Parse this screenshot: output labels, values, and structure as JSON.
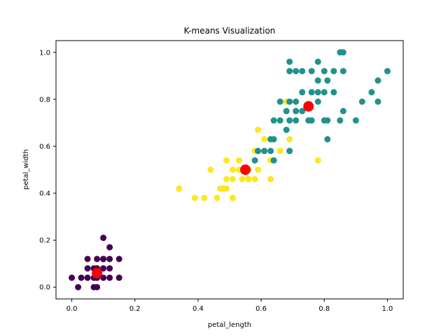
{
  "chart_data": {
    "type": "scatter",
    "title": "K-means Visualization",
    "xlabel": "petal_length",
    "ylabel": "petal_width",
    "xlim": [
      -0.05,
      1.05
    ],
    "ylim": [
      -0.05,
      1.05
    ],
    "xticks": [
      0.0,
      0.2,
      0.4,
      0.6,
      0.8,
      1.0
    ],
    "yticks": [
      0.0,
      0.2,
      0.4,
      0.6,
      0.8,
      1.0
    ],
    "xtick_labels": [
      "0.0",
      "0.2",
      "0.4",
      "0.6",
      "0.8",
      "1.0"
    ],
    "ytick_labels": [
      "0.0",
      "0.2",
      "0.4",
      "0.6",
      "0.8",
      "1.0"
    ],
    "grid": false,
    "series": [
      {
        "color": "#440154",
        "x": [
          0.0,
          0.02,
          0.03,
          0.05,
          0.05,
          0.05,
          0.07,
          0.07,
          0.07,
          0.08,
          0.08,
          0.08,
          0.08,
          0.1,
          0.1,
          0.1,
          0.1,
          0.12,
          0.12,
          0.12,
          0.15,
          0.15,
          0.1,
          0.12
        ],
        "y": [
          0.04,
          0.0,
          0.04,
          0.04,
          0.08,
          0.12,
          0.0,
          0.04,
          0.08,
          0.04,
          0.08,
          0.12,
          0.0,
          0.04,
          0.08,
          0.12,
          0.21,
          0.04,
          0.08,
          0.12,
          0.04,
          0.12,
          0.12,
          0.17
        ]
      },
      {
        "color": "#fde725",
        "x": [
          0.34,
          0.39,
          0.42,
          0.44,
          0.46,
          0.47,
          0.48,
          0.49,
          0.49,
          0.51,
          0.51,
          0.51,
          0.53,
          0.53,
          0.54,
          0.54,
          0.56,
          0.56,
          0.58,
          0.58,
          0.59,
          0.59,
          0.59,
          0.61,
          0.61,
          0.63,
          0.63,
          0.66,
          0.66,
          0.68,
          0.69,
          0.69,
          0.71,
          0.78,
          0.49,
          0.51,
          0.56
        ],
        "y": [
          0.42,
          0.38,
          0.38,
          0.5,
          0.38,
          0.42,
          0.42,
          0.46,
          0.54,
          0.38,
          0.46,
          0.5,
          0.5,
          0.54,
          0.46,
          0.5,
          0.46,
          0.5,
          0.46,
          0.58,
          0.5,
          0.58,
          0.67,
          0.58,
          0.63,
          0.46,
          0.54,
          0.58,
          0.58,
          0.79,
          0.58,
          0.63,
          0.75,
          0.54,
          0.42,
          0.38,
          0.46
        ]
      },
      {
        "color": "#21918c",
        "x": [
          0.58,
          0.59,
          0.61,
          0.63,
          0.63,
          0.64,
          0.64,
          0.66,
          0.66,
          0.68,
          0.68,
          0.69,
          0.69,
          0.69,
          0.69,
          0.71,
          0.71,
          0.71,
          0.71,
          0.73,
          0.73,
          0.73,
          0.75,
          0.76,
          0.76,
          0.76,
          0.78,
          0.78,
          0.78,
          0.78,
          0.8,
          0.8,
          0.8,
          0.81,
          0.81,
          0.83,
          0.83,
          0.85,
          0.85,
          0.86,
          0.86,
          0.86,
          0.9,
          0.92,
          0.95,
          0.97,
          0.97,
          1.0,
          0.81,
          0.64,
          0.69
        ],
        "y": [
          0.54,
          0.58,
          0.58,
          0.58,
          0.63,
          0.54,
          0.71,
          0.71,
          0.79,
          0.67,
          0.75,
          0.71,
          0.79,
          0.92,
          0.96,
          0.75,
          0.79,
          0.92,
          0.71,
          0.75,
          0.92,
          0.83,
          0.71,
          0.83,
          0.92,
          0.71,
          0.79,
          0.83,
          0.88,
          0.96,
          0.71,
          0.83,
          0.92,
          0.88,
          0.63,
          0.83,
          0.92,
          0.71,
          1.0,
          0.75,
          0.92,
          1.0,
          0.71,
          0.79,
          0.83,
          0.79,
          0.88,
          0.92,
          0.71,
          0.63,
          0.58
        ]
      }
    ],
    "centroids": {
      "color": "#ff0000",
      "x": [
        0.08,
        0.55,
        0.75
      ],
      "y": [
        0.06,
        0.5,
        0.77
      ]
    }
  }
}
